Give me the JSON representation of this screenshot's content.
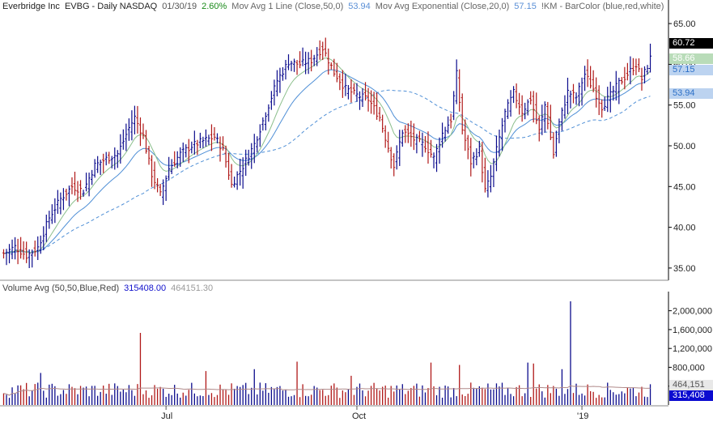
{
  "header": {
    "company": "Everbridge Inc",
    "symbol_info": "EVBG - Daily  NASDAQ",
    "date": "01/30/19",
    "change": "2.60%",
    "ma1_label": "Mov Avg 1 Line (Close,50,0)",
    "ma1_value": "53.94",
    "ma2_label": "Mov Avg Exponential (Close,20,0)",
    "ma2_value": "57.15",
    "barcolor_label": "!KM - BarColor (blue,red,white)"
  },
  "volume_header": {
    "label": "Volume Avg (50,50,Blue,Red)",
    "value1": "315408.00",
    "value2": "464151.30"
  },
  "price_badges": {
    "last": "60.72",
    "ma_fast": "58.66",
    "ema20": "57.15",
    "ma50": "53.94"
  },
  "volume_badges": {
    "avg": "464,151",
    "last": "315,408"
  },
  "colors": {
    "up_bar": "#0b0b8c",
    "down_bar": "#b01818",
    "ma_fast": "#8cbf8c",
    "ema20": "#4f8fd6",
    "ma50": "#4f8fd6",
    "change_green": "#1a8a1a",
    "value_blue": "#5a8fd6",
    "vol_value_blue": "#1212cc",
    "vol_value_gray": "#9a9a9a",
    "axis": "#000000",
    "badge_black": "#000000",
    "badge_green": "#b9dcb9",
    "badge_blue": "#bcd3f0",
    "badge_darkblue": "#0b0bd0"
  },
  "chart_data": {
    "type": "ohlc",
    "title": "Everbridge Inc  EVBG - Daily  NASDAQ",
    "x_tick_labels": [
      "Jul",
      "Oct",
      "'19"
    ],
    "x_tick_bar_index": [
      57,
      124,
      203
    ],
    "price_axis": {
      "ticks": [
        35.0,
        40.0,
        45.0,
        50.0,
        55.0,
        60.0,
        65.0
      ],
      "ylim": [
        33.5,
        66.5
      ]
    },
    "volume_axis": {
      "ticks": [
        400000,
        800000,
        1200000,
        1600000,
        2000000
      ],
      "ylim": [
        0,
        2300000
      ]
    },
    "close_anchors": [
      [
        0,
        36.8
      ],
      [
        4,
        37.6
      ],
      [
        8,
        36.5
      ],
      [
        12,
        37.5
      ],
      [
        16,
        41.2
      ],
      [
        20,
        43.5
      ],
      [
        24,
        45.0
      ],
      [
        28,
        44.5
      ],
      [
        32,
        47.6
      ],
      [
        36,
        48.4
      ],
      [
        40,
        49.0
      ],
      [
        44,
        52.2
      ],
      [
        46,
        53.5
      ],
      [
        49,
        51.2
      ],
      [
        52,
        46.5
      ],
      [
        55,
        44.0
      ],
      [
        58,
        47.2
      ],
      [
        62,
        49.0
      ],
      [
        66,
        50.0
      ],
      [
        70,
        50.6
      ],
      [
        74,
        51.1
      ],
      [
        77,
        49.5
      ],
      [
        80,
        45.2
      ],
      [
        84,
        47.5
      ],
      [
        88,
        50.2
      ],
      [
        92,
        54.0
      ],
      [
        96,
        58.0
      ],
      [
        100,
        60.3
      ],
      [
        104,
        60.0
      ],
      [
        108,
        60.5
      ],
      [
        112,
        62.0
      ],
      [
        116,
        59.0
      ],
      [
        120,
        57.0
      ],
      [
        124,
        56.2
      ],
      [
        128,
        55.7
      ],
      [
        132,
        53.5
      ],
      [
        134,
        51.0
      ],
      [
        137,
        47.5
      ],
      [
        140,
        51.8
      ],
      [
        144,
        50.8
      ],
      [
        148,
        50.0
      ],
      [
        151,
        48.5
      ],
      [
        154,
        51.5
      ],
      [
        157,
        53.2
      ],
      [
        159,
        58.8
      ],
      [
        161,
        52.0
      ],
      [
        164,
        48.0
      ],
      [
        167,
        49.6
      ],
      [
        169,
        44.5
      ],
      [
        171,
        46.2
      ],
      [
        173,
        49.5
      ],
      [
        176,
        54.0
      ],
      [
        179,
        56.5
      ],
      [
        182,
        54.2
      ],
      [
        185,
        55.8
      ],
      [
        188,
        51.8
      ],
      [
        190,
        55.0
      ],
      [
        193,
        49.0
      ],
      [
        195,
        52.8
      ],
      [
        198,
        56.6
      ],
      [
        201,
        56.0
      ],
      [
        204,
        58.8
      ],
      [
        207,
        57.0
      ],
      [
        210,
        54.8
      ],
      [
        213,
        56.2
      ],
      [
        216,
        57.7
      ],
      [
        219,
        58.8
      ],
      [
        222,
        60.0
      ],
      [
        224,
        58.2
      ],
      [
        226,
        59.8
      ],
      [
        227,
        60.72
      ]
    ],
    "volume_spikes": [
      [
        48,
        1530000
      ],
      [
        199,
        2200000
      ],
      [
        13,
        680000
      ],
      [
        71,
        720000
      ],
      [
        88,
        760000
      ],
      [
        103,
        920000
      ],
      [
        122,
        620000
      ],
      [
        150,
        900000
      ],
      [
        160,
        850000
      ],
      [
        184,
        900000
      ],
      [
        186,
        880000
      ],
      [
        196,
        760000
      ]
    ],
    "series": [
      {
        "name": "Mov Avg 1 Line (Close,50,0)",
        "last": 53.94
      },
      {
        "name": "Mov Avg Exponential (Close,20,0)",
        "last": 57.15
      },
      {
        "name": "Volume Avg (50,50,Blue,Red)",
        "last": 464151.3
      }
    ],
    "last_close": 60.72,
    "last_volume": 315408
  }
}
